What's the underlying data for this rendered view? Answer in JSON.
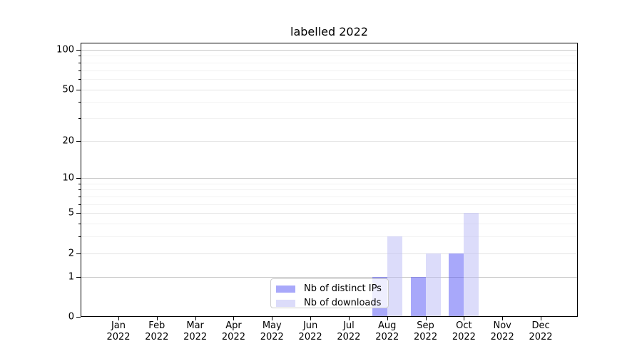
{
  "chart_data": {
    "type": "bar",
    "title": "labelled 2022",
    "categories": [
      "Jan",
      "Feb",
      "Mar",
      "Apr",
      "May",
      "Jun",
      "Jul",
      "Aug",
      "Sep",
      "Oct",
      "Nov",
      "Dec"
    ],
    "x_year_label": "2022",
    "series": [
      {
        "name": "Nb of distinct IPs",
        "key": "distinct-ips",
        "fill": "rgba(82,82,245,0.5)",
        "values": [
          0,
          0,
          0,
          0,
          0,
          0,
          0,
          1,
          1,
          2,
          0,
          0
        ]
      },
      {
        "name": "Nb of downloads",
        "key": "downloads",
        "fill": "rgba(185,185,245,0.5)",
        "values": [
          0,
          0,
          0,
          0,
          0,
          0,
          0,
          3,
          2,
          5,
          0,
          0
        ]
      }
    ],
    "y_axis": {
      "scale": "log10(1+value)",
      "tick_values": [
        0,
        1,
        2,
        5,
        10,
        20,
        50,
        100
      ],
      "minor_values": [
        3,
        4,
        6,
        7,
        8,
        9,
        30,
        40,
        60,
        70,
        80,
        90
      ],
      "range": [
        0,
        113
      ]
    },
    "legend_position": "lower center",
    "grid": true,
    "colors": {
      "decade_grid": "#c9c9c9",
      "major_grid": "#e4e4e4",
      "minor_grid": "#f2f2f2",
      "spine": "#000000",
      "background": "#ffffff",
      "legend_border": "#cccccc"
    }
  }
}
